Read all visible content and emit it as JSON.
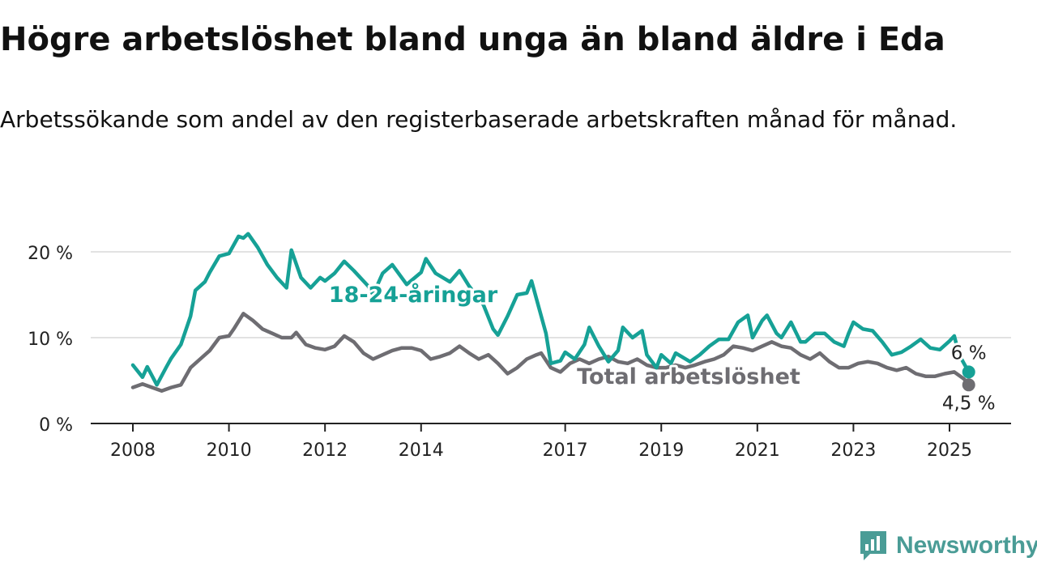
{
  "title": "Högre arbetslöshet bland unga än bland äldre i Eda",
  "subtitle": "Arbetssökande som andel av den registerbaserade arbetskraften månad för månad.",
  "brand": {
    "name": "Newsworthy",
    "icon": "newsworthy-logo-icon",
    "color": "#4a9c96"
  },
  "chart_data": {
    "type": "line",
    "title": "Högre arbetslöshet bland unga än bland äldre i Eda",
    "subtitle": "Arbetssökande som andel av den registerbaserade arbetskraften månad för månad.",
    "xlabel": "",
    "ylabel": "",
    "x_ticks": [
      "2008",
      "2010",
      "2012",
      "2014",
      "2017",
      "2019",
      "2021",
      "2023",
      "2025"
    ],
    "y_ticks": [
      0,
      10,
      20
    ],
    "y_tick_labels": [
      "0 %",
      "10 %",
      "20 %"
    ],
    "ylim": [
      0,
      23
    ],
    "xlim": [
      2007.7,
      2026.3
    ],
    "grid": true,
    "legend": "inline labels",
    "series": [
      {
        "name": "18-24-åringar",
        "color": "#16a196",
        "end_label": "6 %",
        "points": [
          [
            2008.0,
            6.8
          ],
          [
            2008.2,
            5.4
          ],
          [
            2008.3,
            6.6
          ],
          [
            2008.5,
            4.5
          ],
          [
            2008.7,
            6.6
          ],
          [
            2008.8,
            7.6
          ],
          [
            2009.0,
            9.2
          ],
          [
            2009.2,
            12.5
          ],
          [
            2009.3,
            15.5
          ],
          [
            2009.5,
            16.5
          ],
          [
            2009.6,
            17.6
          ],
          [
            2009.8,
            19.5
          ],
          [
            2010.0,
            19.8
          ],
          [
            2010.2,
            21.8
          ],
          [
            2010.3,
            21.6
          ],
          [
            2010.4,
            22.1
          ],
          [
            2010.6,
            20.5
          ],
          [
            2010.8,
            18.5
          ],
          [
            2011.0,
            17.0
          ],
          [
            2011.2,
            15.8
          ],
          [
            2011.3,
            20.2
          ],
          [
            2011.5,
            17.0
          ],
          [
            2011.7,
            15.8
          ],
          [
            2011.9,
            17.0
          ],
          [
            2012.0,
            16.6
          ],
          [
            2012.2,
            17.5
          ],
          [
            2012.4,
            18.9
          ],
          [
            2012.6,
            17.8
          ],
          [
            2012.9,
            16.0
          ],
          [
            2013.0,
            15.0
          ],
          [
            2013.2,
            17.5
          ],
          [
            2013.4,
            18.5
          ],
          [
            2013.7,
            16.2
          ],
          [
            2014.0,
            17.6
          ],
          [
            2014.1,
            19.2
          ],
          [
            2014.3,
            17.5
          ],
          [
            2014.6,
            16.5
          ],
          [
            2014.8,
            17.8
          ],
          [
            2015.0,
            16.0
          ],
          [
            2015.3,
            13.8
          ],
          [
            2015.5,
            11.0
          ],
          [
            2015.6,
            10.3
          ],
          [
            2015.8,
            12.5
          ],
          [
            2016.0,
            15.0
          ],
          [
            2016.2,
            15.2
          ],
          [
            2016.3,
            16.6
          ],
          [
            2016.6,
            10.5
          ],
          [
            2016.7,
            7.0
          ],
          [
            2016.9,
            7.3
          ],
          [
            2017.0,
            8.3
          ],
          [
            2017.2,
            7.5
          ],
          [
            2017.4,
            9.2
          ],
          [
            2017.5,
            11.2
          ],
          [
            2017.7,
            9.0
          ],
          [
            2017.9,
            7.2
          ],
          [
            2018.1,
            8.5
          ],
          [
            2018.2,
            11.2
          ],
          [
            2018.4,
            10.0
          ],
          [
            2018.6,
            10.8
          ],
          [
            2018.7,
            8.0
          ],
          [
            2018.9,
            6.5
          ],
          [
            2019.0,
            8.0
          ],
          [
            2019.2,
            7.0
          ],
          [
            2019.3,
            8.2
          ],
          [
            2019.6,
            7.2
          ],
          [
            2019.8,
            8.0
          ],
          [
            2020.0,
            9.0
          ],
          [
            2020.2,
            9.8
          ],
          [
            2020.4,
            9.8
          ],
          [
            2020.6,
            11.8
          ],
          [
            2020.8,
            12.6
          ],
          [
            2020.9,
            10.0
          ],
          [
            2021.1,
            12.0
          ],
          [
            2021.2,
            12.6
          ],
          [
            2021.4,
            10.5
          ],
          [
            2021.5,
            10.0
          ],
          [
            2021.7,
            11.8
          ],
          [
            2021.9,
            9.5
          ],
          [
            2022.0,
            9.5
          ],
          [
            2022.2,
            10.5
          ],
          [
            2022.4,
            10.5
          ],
          [
            2022.6,
            9.5
          ],
          [
            2022.8,
            9.0
          ],
          [
            2022.9,
            10.5
          ],
          [
            2023.0,
            11.8
          ],
          [
            2023.2,
            11.0
          ],
          [
            2023.4,
            10.8
          ],
          [
            2023.6,
            9.5
          ],
          [
            2023.8,
            8.0
          ],
          [
            2024.0,
            8.3
          ],
          [
            2024.2,
            9.0
          ],
          [
            2024.4,
            9.8
          ],
          [
            2024.6,
            8.8
          ],
          [
            2024.8,
            8.6
          ],
          [
            2025.0,
            9.6
          ],
          [
            2025.1,
            10.2
          ],
          [
            2025.2,
            8.0
          ],
          [
            2025.4,
            6.0
          ]
        ]
      },
      {
        "name": "Total arbetslöshet",
        "color": "#6e6d72",
        "end_label": "4,5 %",
        "points": [
          [
            2008.0,
            4.2
          ],
          [
            2008.2,
            4.6
          ],
          [
            2008.4,
            4.2
          ],
          [
            2008.6,
            3.8
          ],
          [
            2008.8,
            4.2
          ],
          [
            2009.0,
            4.5
          ],
          [
            2009.2,
            6.5
          ],
          [
            2009.4,
            7.5
          ],
          [
            2009.6,
            8.5
          ],
          [
            2009.8,
            10.0
          ],
          [
            2010.0,
            10.2
          ],
          [
            2010.1,
            11.0
          ],
          [
            2010.3,
            12.8
          ],
          [
            2010.5,
            12.0
          ],
          [
            2010.7,
            11.0
          ],
          [
            2010.9,
            10.5
          ],
          [
            2011.1,
            10.0
          ],
          [
            2011.3,
            10.0
          ],
          [
            2011.4,
            10.6
          ],
          [
            2011.6,
            9.2
          ],
          [
            2011.8,
            8.8
          ],
          [
            2012.0,
            8.6
          ],
          [
            2012.2,
            9.0
          ],
          [
            2012.4,
            10.2
          ],
          [
            2012.6,
            9.5
          ],
          [
            2012.8,
            8.2
          ],
          [
            2013.0,
            7.5
          ],
          [
            2013.2,
            8.0
          ],
          [
            2013.4,
            8.5
          ],
          [
            2013.6,
            8.8
          ],
          [
            2013.8,
            8.8
          ],
          [
            2014.0,
            8.5
          ],
          [
            2014.2,
            7.5
          ],
          [
            2014.4,
            7.8
          ],
          [
            2014.6,
            8.2
          ],
          [
            2014.8,
            9.0
          ],
          [
            2015.0,
            8.2
          ],
          [
            2015.2,
            7.5
          ],
          [
            2015.4,
            8.0
          ],
          [
            2015.6,
            7.0
          ],
          [
            2015.8,
            5.8
          ],
          [
            2016.0,
            6.5
          ],
          [
            2016.2,
            7.5
          ],
          [
            2016.4,
            8.0
          ],
          [
            2016.5,
            8.2
          ],
          [
            2016.7,
            6.5
          ],
          [
            2016.9,
            6.0
          ],
          [
            2017.1,
            7.0
          ],
          [
            2017.3,
            7.5
          ],
          [
            2017.5,
            7.0
          ],
          [
            2017.7,
            7.5
          ],
          [
            2017.9,
            7.8
          ],
          [
            2018.1,
            7.2
          ],
          [
            2018.3,
            7.0
          ],
          [
            2018.5,
            7.5
          ],
          [
            2018.7,
            6.8
          ],
          [
            2018.9,
            6.5
          ],
          [
            2019.1,
            6.5
          ],
          [
            2019.3,
            6.8
          ],
          [
            2019.5,
            6.5
          ],
          [
            2019.7,
            6.8
          ],
          [
            2019.9,
            7.2
          ],
          [
            2020.1,
            7.5
          ],
          [
            2020.3,
            8.0
          ],
          [
            2020.5,
            9.0
          ],
          [
            2020.7,
            8.8
          ],
          [
            2020.9,
            8.5
          ],
          [
            2021.1,
            9.0
          ],
          [
            2021.3,
            9.5
          ],
          [
            2021.5,
            9.0
          ],
          [
            2021.7,
            8.8
          ],
          [
            2021.9,
            8.0
          ],
          [
            2022.1,
            7.5
          ],
          [
            2022.3,
            8.2
          ],
          [
            2022.5,
            7.2
          ],
          [
            2022.7,
            6.5
          ],
          [
            2022.9,
            6.5
          ],
          [
            2023.1,
            7.0
          ],
          [
            2023.3,
            7.2
          ],
          [
            2023.5,
            7.0
          ],
          [
            2023.7,
            6.5
          ],
          [
            2023.9,
            6.2
          ],
          [
            2024.1,
            6.5
          ],
          [
            2024.3,
            5.8
          ],
          [
            2024.5,
            5.5
          ],
          [
            2024.7,
            5.5
          ],
          [
            2024.9,
            5.8
          ],
          [
            2025.1,
            6.0
          ],
          [
            2025.3,
            5.2
          ],
          [
            2025.4,
            4.5
          ]
        ]
      }
    ]
  }
}
